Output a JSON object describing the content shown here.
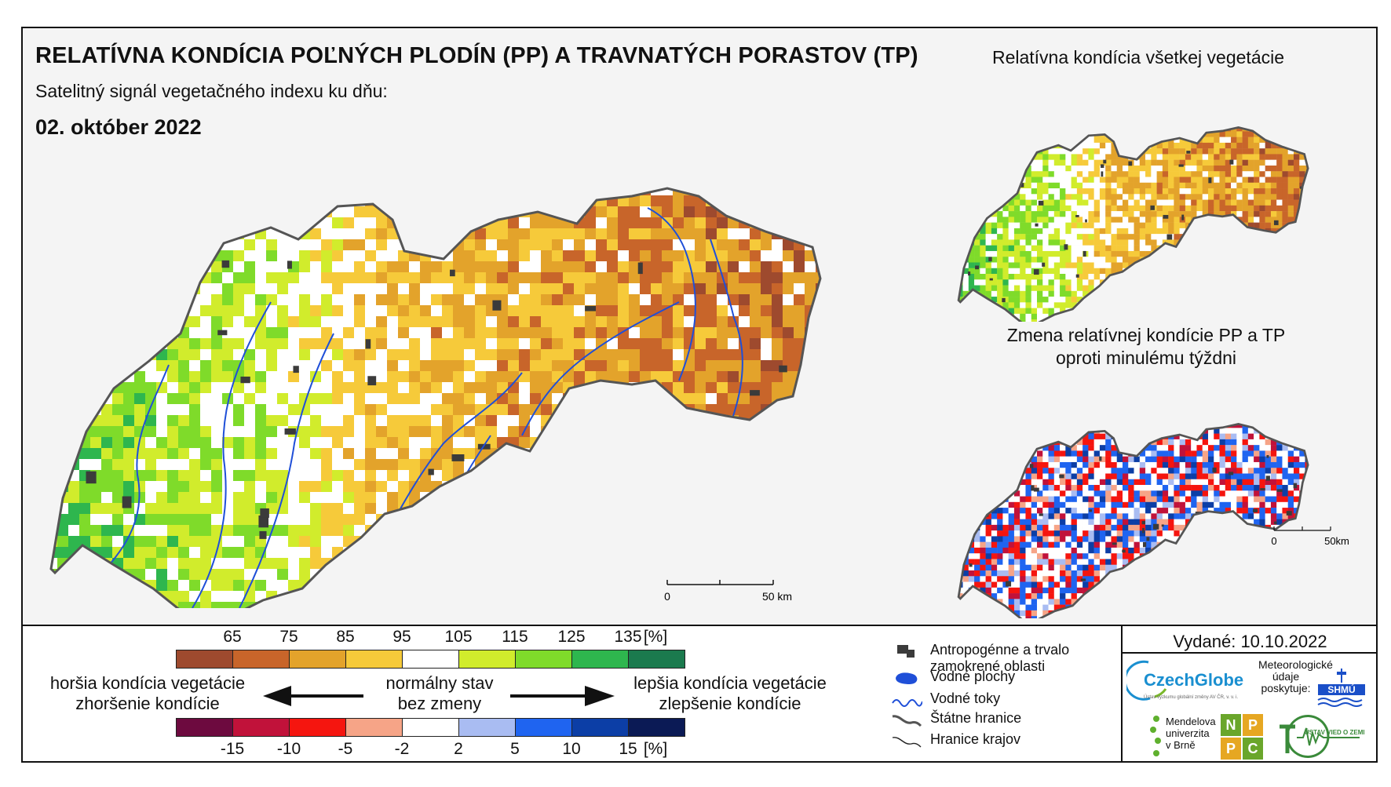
{
  "title": "RELATÍVNA KONDÍCIA POĽNÝCH PLODÍN (PP) A TRAVNATÝCH PORASTOV (TP)",
  "subtitle": "Satelitný signál vegetačného indexu ku dňu:",
  "date": "02. október 2022",
  "inset1_title": "Relatívna kondícia všetkej vegetácie",
  "inset2_title_line1": "Zmena relatívnej kondície PP a TP",
  "inset2_title_line2": "oproti minulému týždni",
  "main_scale": {
    "zero": "0",
    "km": "50 km"
  },
  "inset_scale": {
    "zero": "0",
    "km": "50km"
  },
  "condition_scale": {
    "ticks": [
      "65",
      "75",
      "85",
      "95",
      "105",
      "115",
      "125",
      "135"
    ],
    "unit": "[%]",
    "colors": [
      "#9e4a2e",
      "#c8652a",
      "#e3a32b",
      "#f6ca3a",
      "#ffffff",
      "#d1ec2c",
      "#7fdb2a",
      "#2eb64e",
      "#1b7a4e"
    ]
  },
  "change_scale": {
    "ticks": [
      "-15",
      "-10",
      "-5",
      "-2",
      "2",
      "5",
      "10",
      "15"
    ],
    "unit": "[%]",
    "colors": [
      "#6d0a3f",
      "#c1123a",
      "#f5150f",
      "#f6a487",
      "#ffffff",
      "#a9bcf2",
      "#1f64f0",
      "#0c3ea6",
      "#0b1a55"
    ]
  },
  "legend_text": {
    "worse_line1": "horšia kondícia vegetácie",
    "worse_line2": "zhoršenie kondície",
    "normal_line1": "normálny stav",
    "normal_line2": "bez zmeny",
    "better_line1": "lepšia kondícia vegetácie",
    "better_line2": "zlepšenie kondície"
  },
  "map_key": [
    {
      "icon": "urban-area-icon",
      "label_line1": "Antropogénne a trvalo",
      "label_line2": "zamokrené oblasti"
    },
    {
      "icon": "water-body-icon",
      "label_line1": "Vodné plochy",
      "label_line2": ""
    },
    {
      "icon": "river-icon",
      "label_line1": "Vodné toky",
      "label_line2": ""
    },
    {
      "icon": "state-border-icon",
      "label_line1": "Štátne hranice",
      "label_line2": ""
    },
    {
      "icon": "region-border-icon",
      "label_line1": "Hranice krajov",
      "label_line2": ""
    }
  ],
  "issued": "Vydané: 10.10.2022",
  "logos": {
    "czechglobe": "CzechGlobe",
    "czechglobe_sub": "Ústav výzkumu globální změny AV ČR, v. v. i.",
    "shmu_caption_line1": "Meteorologické",
    "shmu_caption_line2": "údaje",
    "shmu_caption_line3": "poskytuje:",
    "shmu": "SHMÚ",
    "mendel_line1": "Mendelova",
    "mendel_line2": "univerzita",
    "mendel_line3": "v Brně",
    "nppc": [
      "N",
      "P",
      "P",
      "C"
    ],
    "uvz": "ÚSTAV VIED O ZEMI"
  }
}
